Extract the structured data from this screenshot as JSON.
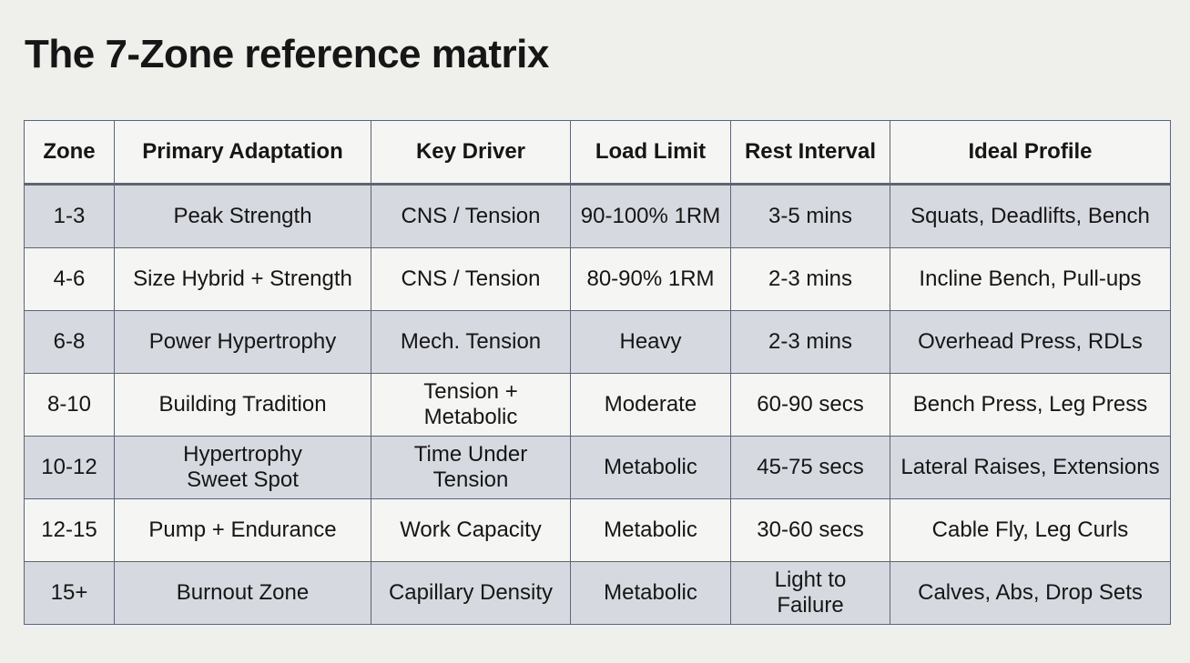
{
  "title": "The 7-Zone reference matrix",
  "table": {
    "header": [
      "Zone",
      "Primary Adaptation",
      "Key Driver",
      "Load Limit",
      "Rest Interval",
      "Ideal Profile"
    ],
    "rows": [
      [
        "1-3",
        "Peak Strength",
        "CNS / Tension",
        "90-100% 1RM",
        "3-5 mins",
        "Squats, Deadlifts, Bench"
      ],
      [
        "4-6",
        "Size Hybrid + Strength",
        "CNS / Tension",
        "80-90% 1RM",
        "2-3 mins",
        "Incline Bench, Pull-ups"
      ],
      [
        "6-8",
        "Power Hypertrophy",
        "Mech. Tension",
        "Heavy",
        "2-3 mins",
        "Overhead Press, RDLs"
      ],
      [
        "8-10",
        "Building Tradition",
        "Tension +\nMetabolic",
        "Moderate",
        "60-90 secs",
        "Bench Press, Leg Press"
      ],
      [
        "10-12",
        "Hypertrophy\nSweet Spot",
        "Time Under\nTension",
        "Metabolic",
        "45-75 secs",
        "Lateral Raises, Extensions"
      ],
      [
        "12-15",
        "Pump + Endurance",
        "Work Capacity",
        "Metabolic",
        "30-60 secs",
        "Cable Fly, Leg Curls"
      ],
      [
        "15+",
        "Burnout Zone",
        "Capillary Density",
        "Metabolic",
        "Light to\nFailure",
        "Calves, Abs, Drop Sets"
      ]
    ]
  }
}
